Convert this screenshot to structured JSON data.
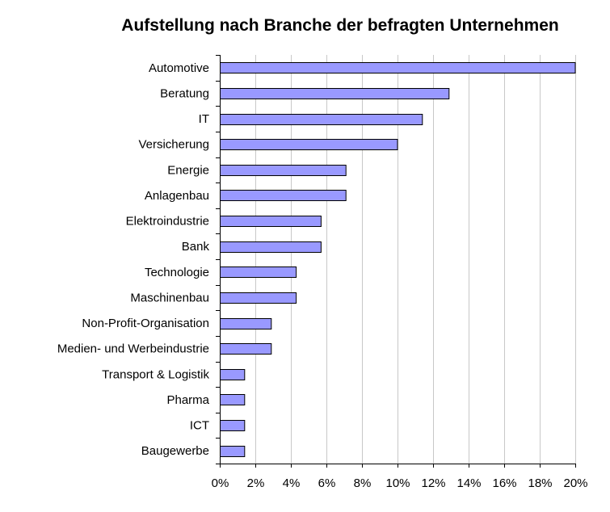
{
  "chart_data": {
    "type": "bar",
    "orientation": "horizontal",
    "title": "Aufstellung nach Branche der befragten Unternehmen",
    "xlabel": "",
    "ylabel": "",
    "categories": [
      "Automotive",
      "Beratung",
      "IT",
      "Versicherung",
      "Energie",
      "Anlagenbau",
      "Elektroindustrie",
      "Bank",
      "Technologie",
      "Maschinenbau",
      "Non-Profit-Organisation",
      "Medien- und Werbeindustrie",
      "Transport & Logistik",
      "Pharma",
      "ICT",
      "Baugewerbe"
    ],
    "values": [
      20.0,
      12.9,
      11.4,
      10.0,
      7.1,
      7.1,
      5.7,
      5.7,
      4.3,
      4.3,
      2.9,
      2.9,
      1.4,
      1.4,
      1.4,
      1.4
    ],
    "xlim": [
      0,
      20
    ],
    "xticks": [
      0,
      2,
      4,
      6,
      8,
      10,
      12,
      14,
      16,
      18,
      20
    ],
    "xtick_labels": [
      "0%",
      "2%",
      "4%",
      "6%",
      "8%",
      "10%",
      "12%",
      "14%",
      "16%",
      "18%",
      "20%"
    ],
    "grid": true,
    "bar_color": "#9999ff",
    "legend": "none"
  }
}
